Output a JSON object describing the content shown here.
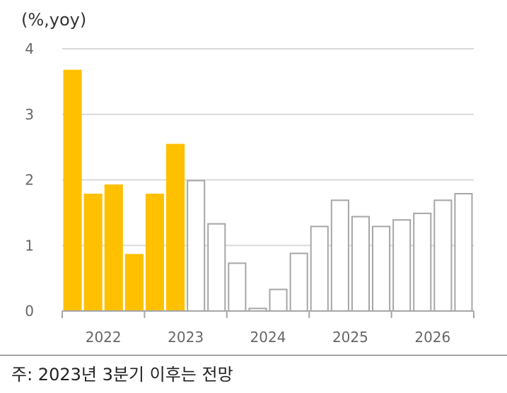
{
  "chart_data": {
    "type": "bar",
    "ylabel": "(%,yoy)",
    "ylim": [
      0,
      4
    ],
    "yticks": [
      0,
      1,
      2,
      3,
      4
    ],
    "grid": true,
    "x_tick_labels": [
      "2022",
      "2023",
      "2024",
      "2025",
      "2026"
    ],
    "categories": [
      "2022Q1",
      "2022Q2",
      "2022Q3",
      "2022Q4",
      "2023Q1",
      "2023Q2",
      "2023Q3",
      "2023Q4",
      "2024Q1",
      "2024Q2",
      "2024Q3",
      "2024Q4",
      "2025Q1",
      "2025Q2",
      "2025Q3",
      "2025Q4",
      "2026Q1",
      "2026Q2",
      "2026Q3",
      "2026Q4"
    ],
    "values": [
      3.68,
      1.79,
      1.93,
      0.87,
      1.79,
      2.55,
      2.0,
      1.34,
      0.74,
      0.05,
      0.34,
      0.89,
      1.3,
      1.7,
      1.45,
      1.3,
      1.4,
      1.5,
      1.7,
      1.8
    ],
    "series_styles": [
      {
        "kind": "actual",
        "count": 6,
        "fill": "#FFC000",
        "stroke": "#FFC000"
      },
      {
        "kind": "forecast",
        "count": 14,
        "fill": "#FFFFFF",
        "stroke": "#A6A6A6"
      }
    ],
    "colors": {
      "actual": "#FFC000",
      "forecast_stroke": "#A6A6A6",
      "grid": "#D9D9D9",
      "axis": "#A6A6A6"
    }
  },
  "note": "주: 2023년 3분기 이후는 전망"
}
